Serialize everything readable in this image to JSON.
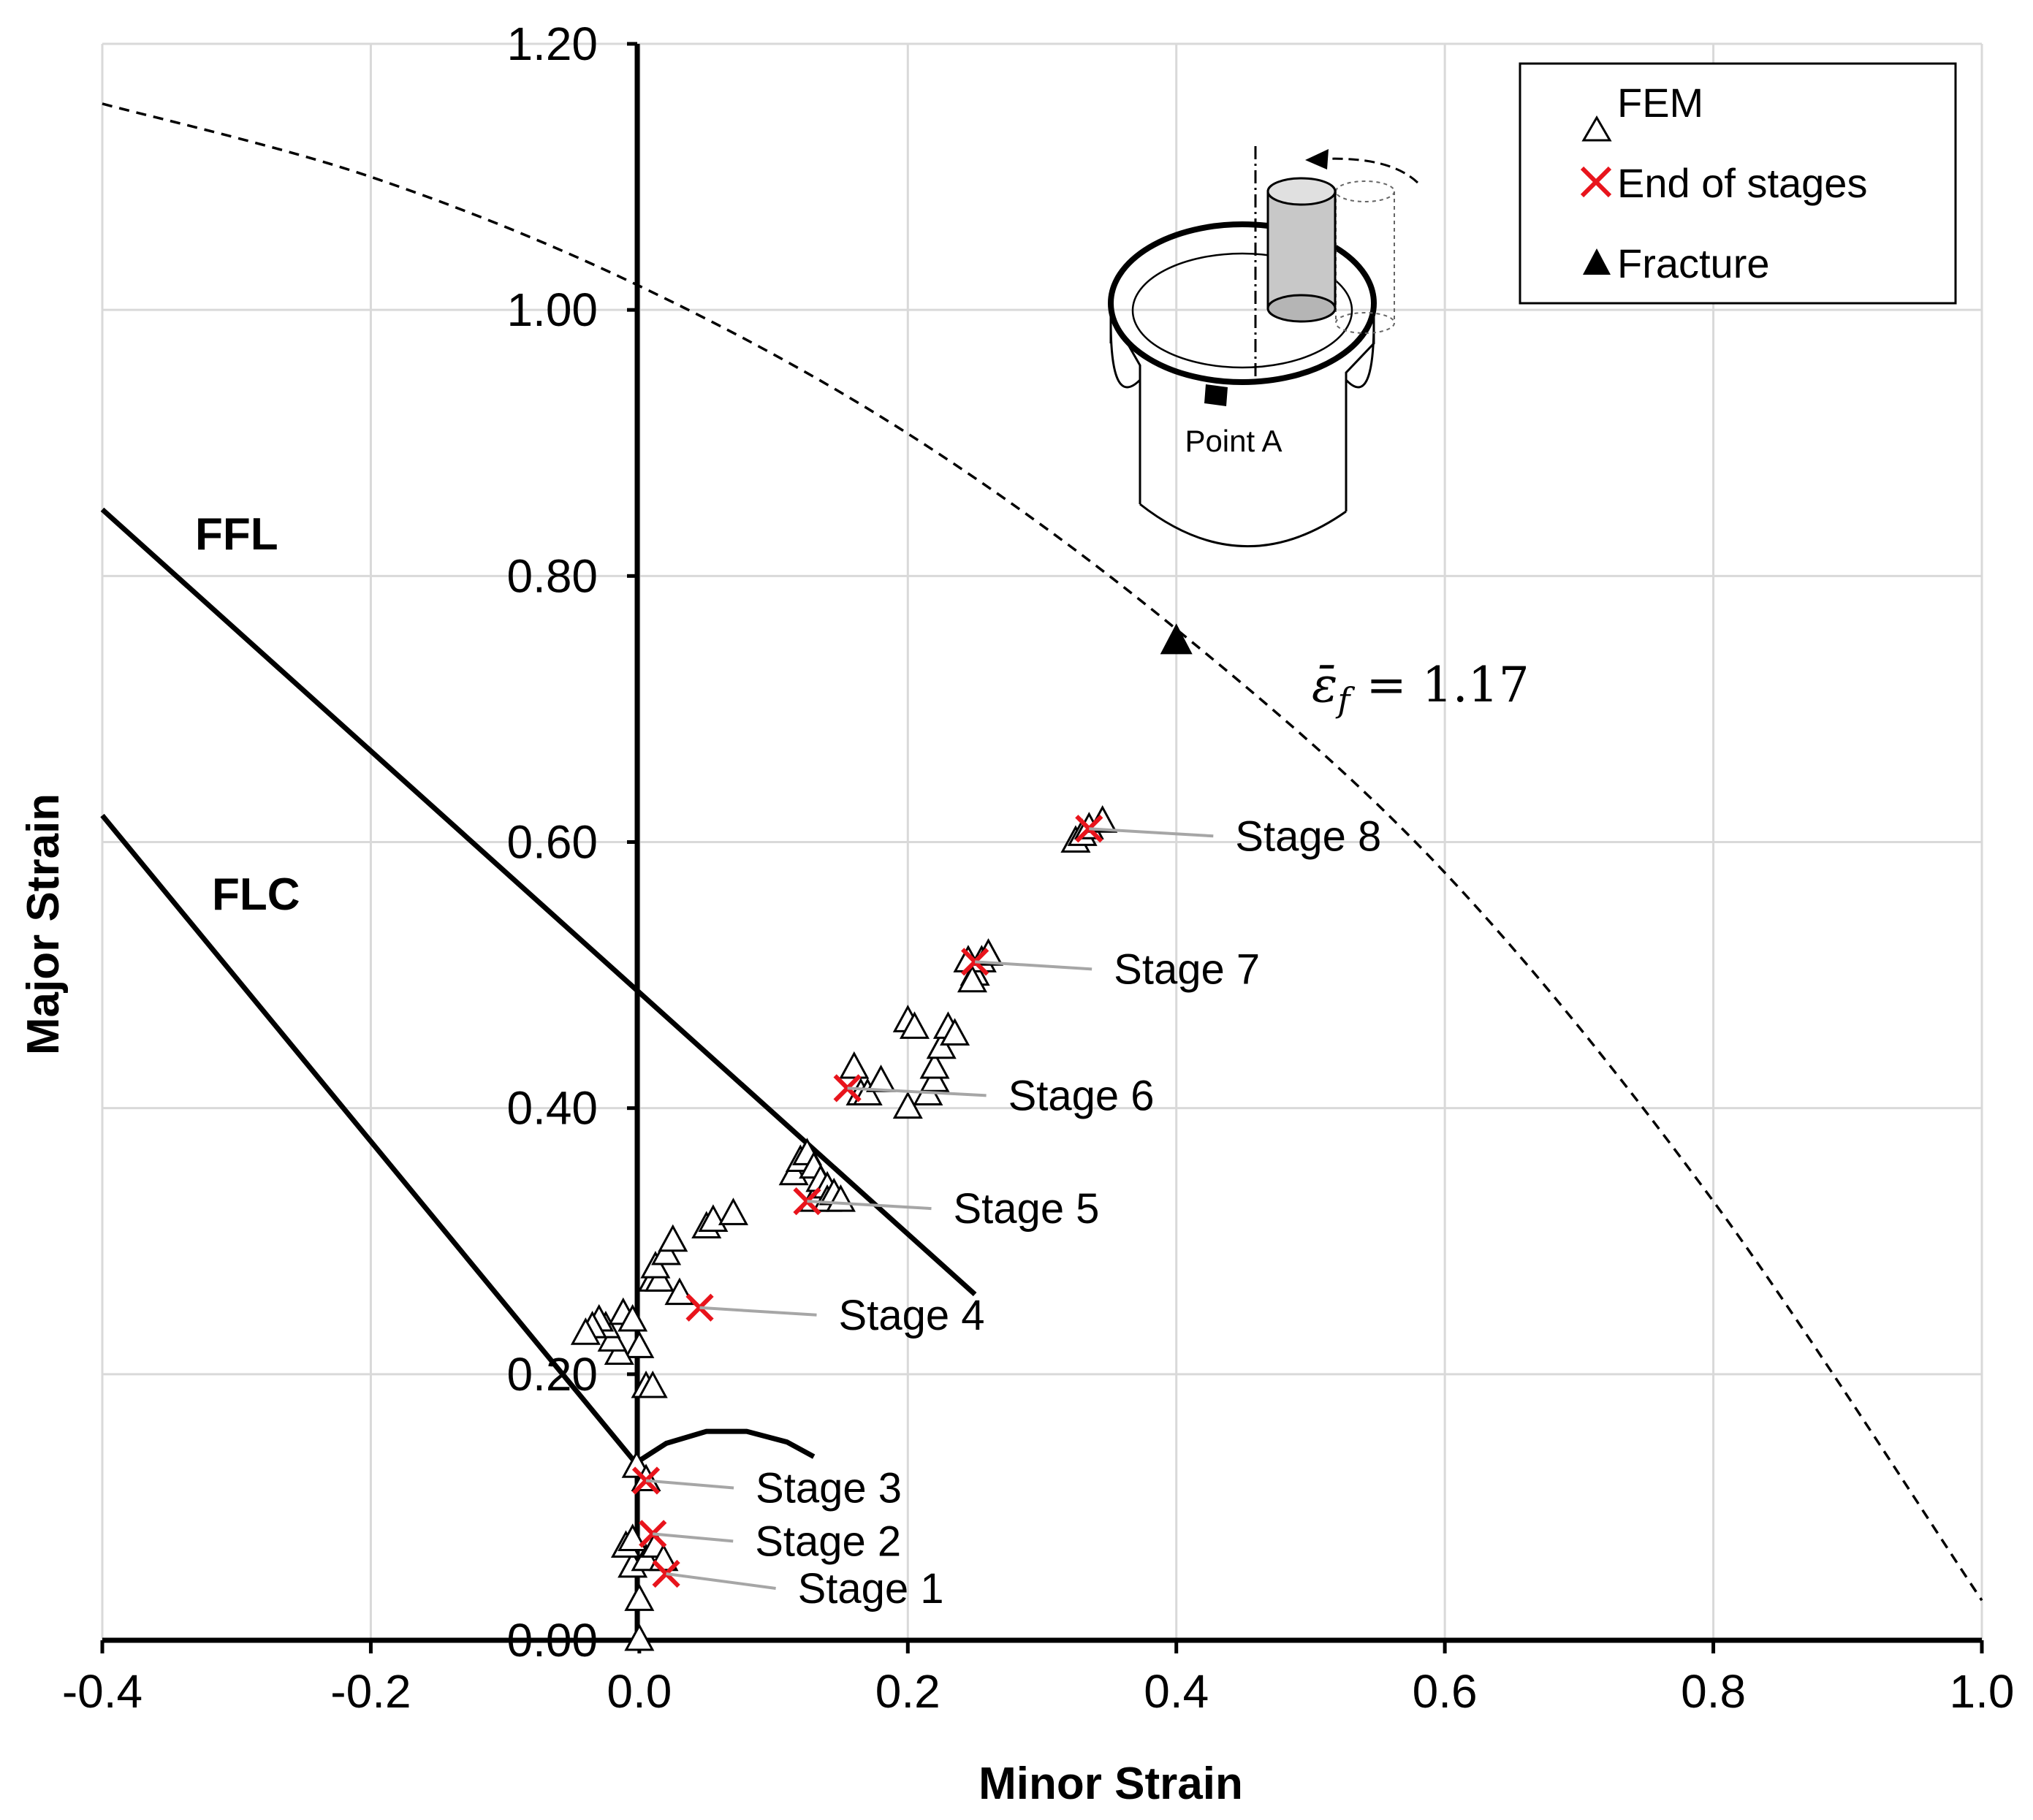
{
  "chart_data": {
    "type": "scatter",
    "xlabel": "Minor Strain",
    "ylabel": "Major Strain",
    "xlim": [
      -0.4,
      1.0
    ],
    "ylim": [
      0.0,
      1.2
    ],
    "x_ticks": [
      -0.4,
      -0.2,
      0.0,
      0.2,
      0.4,
      0.6,
      0.8,
      1.0
    ],
    "x_tick_labels": [
      "-0.4",
      "-0.2",
      "0.0",
      "0.2",
      "0.4",
      "0.6",
      "0.8",
      "1.0"
    ],
    "y_ticks": [
      0.0,
      0.2,
      0.4,
      0.6,
      0.8,
      1.0,
      1.2
    ],
    "y_tick_labels": [
      "0.00",
      "0.20",
      "0.40",
      "0.60",
      "0.80",
      "1.00",
      "1.20"
    ],
    "grid": true,
    "legend": {
      "placement": "top-right",
      "entries": [
        {
          "symbol": "△",
          "label": "FEM",
          "color": "#000000"
        },
        {
          "symbol": "✕",
          "label": "End of stages",
          "color": "#e8141c"
        },
        {
          "symbol": "▲",
          "label": "Fracture",
          "color": "#000000"
        }
      ]
    },
    "curves": {
      "ffl": {
        "label": "FFL",
        "points": [
          [
            -0.4,
            0.85
          ],
          [
            0.25,
            0.26
          ]
        ]
      },
      "flc": {
        "label": "FLC",
        "points": [
          [
            -0.4,
            0.62
          ],
          [
            0.0,
            0.13
          ]
        ],
        "hump": [
          [
            0.0,
            0.135
          ],
          [
            0.02,
            0.148
          ],
          [
            0.05,
            0.157
          ],
          [
            0.08,
            0.157
          ],
          [
            0.11,
            0.149
          ],
          [
            0.13,
            0.138
          ]
        ]
      },
      "fracture_strain": {
        "label_prefix": "ε̄",
        "label_sub": "f",
        "label_value": "= 1.17",
        "value": 1.17,
        "points": [
          [
            -0.4,
            1.155
          ],
          [
            -0.2,
            1.1
          ],
          [
            0.0,
            1.018
          ],
          [
            0.2,
            0.907
          ],
          [
            0.4,
            0.76
          ],
          [
            0.6,
            0.577
          ],
          [
            0.8,
            0.33
          ],
          [
            1.0,
            0.03
          ]
        ]
      }
    },
    "series": [
      {
        "name": "FEM",
        "marker": "open-triangle",
        "points": [
          [
            0.0,
            0.0
          ],
          [
            0.0,
            0.03
          ],
          [
            -0.005,
            0.055
          ],
          [
            0.005,
            0.06
          ],
          [
            -0.01,
            0.07
          ],
          [
            -0.005,
            0.075
          ],
          [
            0.012,
            0.07
          ],
          [
            0.018,
            0.06
          ],
          [
            -0.002,
            0.13
          ],
          [
            0.005,
            0.12
          ],
          [
            0.005,
            0.19
          ],
          [
            0.01,
            0.19
          ],
          [
            0.0,
            0.22
          ],
          [
            -0.015,
            0.215
          ],
          [
            -0.02,
            0.225
          ],
          [
            -0.025,
            0.235
          ],
          [
            -0.03,
            0.24
          ],
          [
            -0.035,
            0.235
          ],
          [
            -0.04,
            0.23
          ],
          [
            -0.012,
            0.245
          ],
          [
            -0.005,
            0.24
          ],
          [
            0.01,
            0.27
          ],
          [
            0.015,
            0.27
          ],
          [
            0.012,
            0.28
          ],
          [
            0.02,
            0.29
          ],
          [
            0.025,
            0.3
          ],
          [
            0.03,
            0.26
          ],
          [
            0.05,
            0.31
          ],
          [
            0.055,
            0.315
          ],
          [
            0.07,
            0.32
          ],
          [
            0.115,
            0.35
          ],
          [
            0.12,
            0.36
          ],
          [
            0.125,
            0.365
          ],
          [
            0.13,
            0.33
          ],
          [
            0.13,
            0.355
          ],
          [
            0.135,
            0.345
          ],
          [
            0.14,
            0.34
          ],
          [
            0.14,
            0.33
          ],
          [
            0.145,
            0.335
          ],
          [
            0.15,
            0.33
          ],
          [
            0.16,
            0.43
          ],
          [
            0.165,
            0.41
          ],
          [
            0.17,
            0.41
          ],
          [
            0.18,
            0.42
          ],
          [
            0.2,
            0.4
          ],
          [
            0.2,
            0.465
          ],
          [
            0.205,
            0.46
          ],
          [
            0.215,
            0.41
          ],
          [
            0.22,
            0.42
          ],
          [
            0.22,
            0.43
          ],
          [
            0.225,
            0.445
          ],
          [
            0.23,
            0.46
          ],
          [
            0.235,
            0.455
          ],
          [
            0.245,
            0.51
          ],
          [
            0.25,
            0.5
          ],
          [
            0.255,
            0.51
          ],
          [
            0.26,
            0.515
          ],
          [
            0.248,
            0.495
          ],
          [
            0.325,
            0.6
          ],
          [
            0.33,
            0.605
          ],
          [
            0.335,
            0.61
          ],
          [
            0.345,
            0.615
          ]
        ]
      },
      {
        "name": "End of stages",
        "marker": "red-x",
        "points": [
          [
            0.02,
            0.05
          ],
          [
            0.01,
            0.08
          ],
          [
            0.005,
            0.12
          ],
          [
            0.045,
            0.25
          ],
          [
            0.125,
            0.33
          ],
          [
            0.155,
            0.415
          ],
          [
            0.25,
            0.51
          ],
          [
            0.335,
            0.61
          ]
        ]
      },
      {
        "name": "Fracture",
        "marker": "filled-triangle",
        "points": [
          [
            0.4,
            0.75
          ]
        ]
      }
    ],
    "stage_labels": [
      {
        "text": "Stage 1",
        "x": 0.02,
        "y": 0.05
      },
      {
        "text": "Stage 2",
        "x": 0.01,
        "y": 0.08
      },
      {
        "text": "Stage 3",
        "x": 0.005,
        "y": 0.12
      },
      {
        "text": "Stage 4",
        "x": 0.045,
        "y": 0.25
      },
      {
        "text": "Stage 5",
        "x": 0.125,
        "y": 0.33
      },
      {
        "text": "Stage 6",
        "x": 0.155,
        "y": 0.415
      },
      {
        "text": "Stage 7",
        "x": 0.25,
        "y": 0.51
      },
      {
        "text": "Stage 8",
        "x": 0.335,
        "y": 0.61
      }
    ],
    "inset": {
      "label": "Point A"
    }
  }
}
